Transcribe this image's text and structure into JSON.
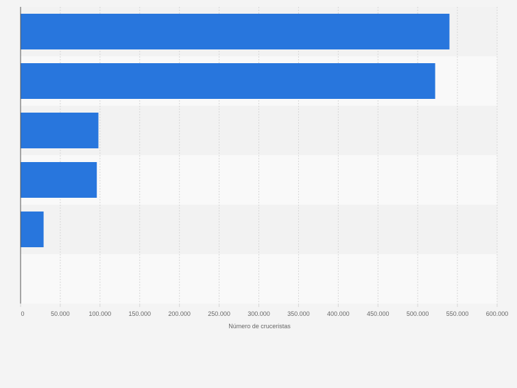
{
  "chart_data": {
    "type": "bar",
    "orientation": "horizontal",
    "categories": [
      "",
      "",
      "",
      "",
      "",
      ""
    ],
    "values": [
      540000,
      522000,
      98000,
      96000,
      29000,
      0
    ],
    "xlabel": "Número de cruceristas",
    "ylabel": "",
    "xlim": [
      0,
      600000
    ],
    "x_ticks": [
      0,
      50000,
      100000,
      150000,
      200000,
      250000,
      300000,
      350000,
      400000,
      450000,
      500000,
      550000,
      600000
    ],
    "x_tick_labels": [
      "0",
      "50.000",
      "100.000",
      "150.000",
      "200.000",
      "250.000",
      "300.000",
      "350.000",
      "400.000",
      "450.000",
      "500.000",
      "550.000",
      "600.000"
    ],
    "grid": true,
    "colors": {
      "bar": "#2876dd",
      "band_dark": "#f2f2f2",
      "band_light": "#f9f9f9",
      "grid": "#d6d6d6",
      "axis": "#555555",
      "tick_text": "#666666",
      "background": "#f4f4f4"
    }
  }
}
